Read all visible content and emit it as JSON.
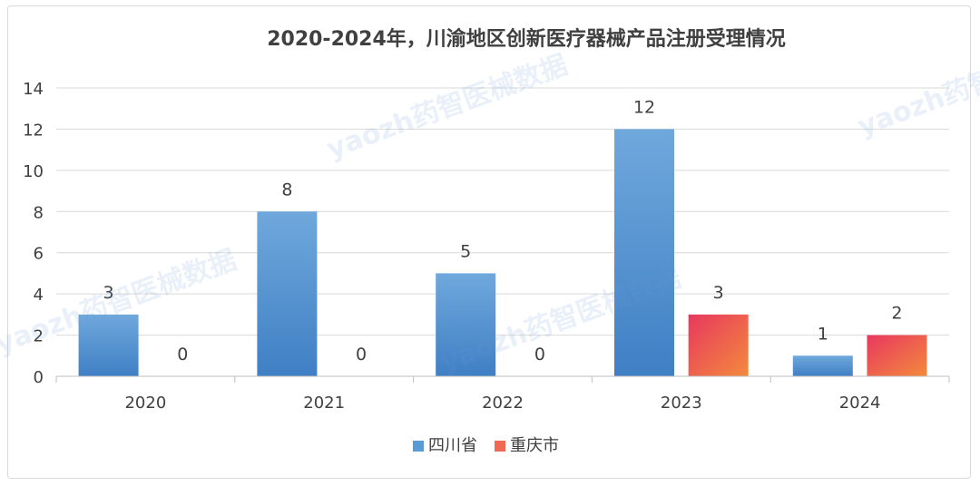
{
  "chart_data": {
    "type": "bar",
    "title": "2020-2024年，川渝地区创新医疗器械产品注册受理情况",
    "categories": [
      "2020",
      "2021",
      "2022",
      "2023",
      "2024"
    ],
    "series": [
      {
        "name": "四川省",
        "values": [
          3,
          8,
          5,
          12,
          1
        ],
        "color": "#5b9bd5"
      },
      {
        "name": "重庆市",
        "values": [
          0,
          0,
          0,
          3,
          2
        ],
        "color": "#ee6a52"
      }
    ],
    "xlabel": "",
    "ylabel": "",
    "ylim": [
      0,
      14
    ],
    "yticks": [
      0,
      2,
      4,
      6,
      8,
      10,
      12,
      14
    ],
    "grid": true,
    "legend": "bottom-center",
    "watermark": "yaozh药智医械数据"
  }
}
